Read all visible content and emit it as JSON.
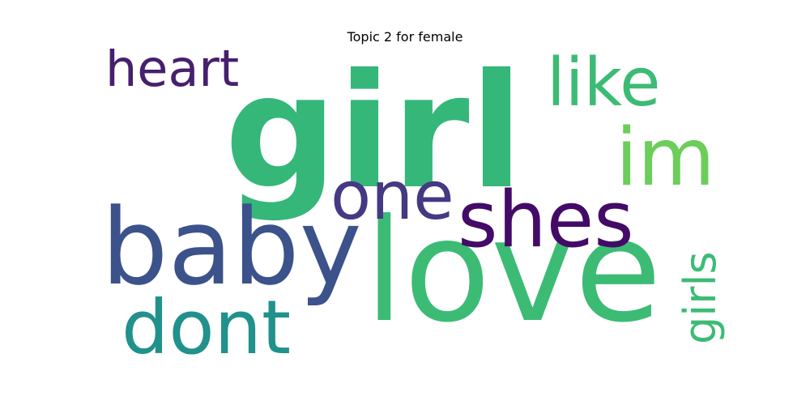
{
  "title": "Topic 2 for female",
  "words": [
    {
      "id": "girl",
      "text": "girl",
      "color": "#35b779"
    },
    {
      "id": "love",
      "text": "love",
      "color": "#3cbb75"
    },
    {
      "id": "baby",
      "text": "baby",
      "color": "#3b528b"
    },
    {
      "id": "shes",
      "text": "shes",
      "color": "#440a68"
    },
    {
      "id": "one",
      "text": "one",
      "color": "#443983"
    },
    {
      "id": "dont",
      "text": "dont",
      "color": "#21918c"
    },
    {
      "id": "im",
      "text": "im",
      "color": "#6ccd5a"
    },
    {
      "id": "like",
      "text": "like",
      "color": "#3cbb75"
    },
    {
      "id": "heart",
      "text": "heart",
      "color": "#46206e"
    },
    {
      "id": "girls",
      "text": "girls",
      "color": "#3cbb75"
    }
  ]
}
